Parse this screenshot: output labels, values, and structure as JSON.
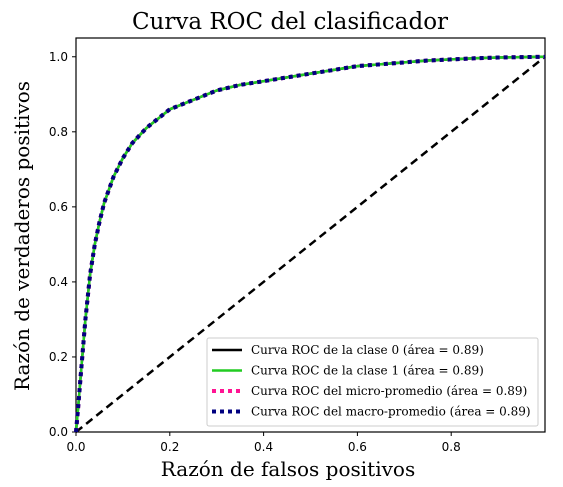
{
  "chart_data": {
    "type": "line",
    "title": "Curva ROC del clasificador",
    "xlabel": "Razón de falsos positivos",
    "ylabel": "Razón de verdaderos positivos",
    "xlim": [
      0.0,
      1.0
    ],
    "ylim": [
      0.0,
      1.05
    ],
    "x_ticks": [
      "0.0",
      "0.2",
      "0.4",
      "0.6",
      "0.8"
    ],
    "y_ticks": [
      "0.0",
      "0.2",
      "0.4",
      "0.6",
      "0.8",
      "1.0"
    ],
    "x_tick_values": [
      0.0,
      0.2,
      0.4,
      0.6,
      0.8
    ],
    "y_tick_values": [
      0.0,
      0.2,
      0.4,
      0.6,
      0.8,
      1.0
    ],
    "grid": false,
    "legend_position": "lower-right",
    "roc_x": [
      0.0,
      0.005,
      0.01,
      0.02,
      0.03,
      0.04,
      0.05,
      0.06,
      0.08,
      0.1,
      0.12,
      0.15,
      0.2,
      0.25,
      0.3,
      0.35,
      0.4,
      0.45,
      0.5,
      0.55,
      0.6,
      0.65,
      0.7,
      0.75,
      0.8,
      0.85,
      0.9,
      0.95,
      1.0
    ],
    "roc_y": [
      0.0,
      0.07,
      0.15,
      0.3,
      0.42,
      0.5,
      0.56,
      0.61,
      0.68,
      0.73,
      0.77,
      0.81,
      0.86,
      0.885,
      0.91,
      0.925,
      0.935,
      0.945,
      0.955,
      0.965,
      0.975,
      0.98,
      0.985,
      0.99,
      0.993,
      0.996,
      0.998,
      0.999,
      1.0
    ],
    "series": [
      {
        "name": "Curva ROC de la clase 0 (área = 0.89)",
        "color": "#000000",
        "style": "solid"
      },
      {
        "name": "Curva ROC de la clase 1 (área = 0.89)",
        "color": "#22cc22",
        "style": "solid"
      },
      {
        "name": "Curva ROC del micro-promedio (área = 0.89)",
        "color": "#ff1493",
        "style": "dotted"
      },
      {
        "name": "Curva ROC del macro-promedio (área = 0.89)",
        "color": "#000080",
        "style": "dotted"
      }
    ],
    "diagonal": {
      "x": [
        0.0,
        1.0
      ],
      "y": [
        0.0,
        1.0
      ],
      "color": "#000000",
      "style": "dashed"
    }
  }
}
